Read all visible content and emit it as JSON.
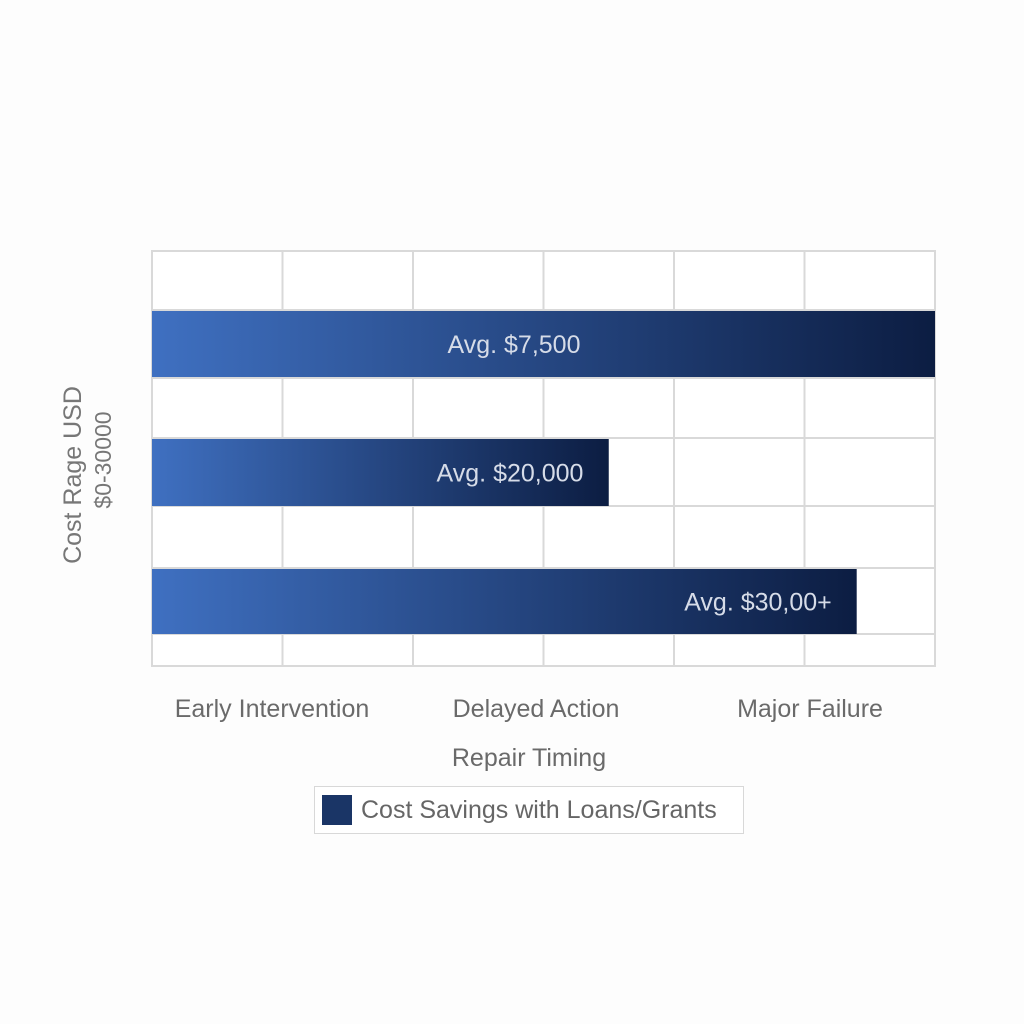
{
  "chart_data": {
    "type": "bar",
    "orientation": "horizontal",
    "title": "",
    "xlabel": "Repair Timing",
    "ylabel": "Cost Rage USD",
    "ylabel_range": "$0-30000",
    "xlim": [
      0,
      30000
    ],
    "grid": true,
    "legend_position": "bottom-center",
    "x_tick_labels": [
      "Early Intervention",
      "Delayed Action",
      "Major Failure"
    ],
    "bar_labels": [
      "Avg. $7,500",
      "Avg. $20,000",
      "Avg. $30,00+"
    ],
    "series": [
      {
        "name": "Cost Savings with Loans/Grants",
        "color": "#1a3566",
        "values": [
          30000,
          17500,
          27000
        ]
      }
    ],
    "colors": {
      "bar_light": "#3f70c1",
      "bar_dark": "#0c1d42",
      "grid": "#d9d9d9",
      "label_on_bar": "#d6dce8"
    }
  }
}
